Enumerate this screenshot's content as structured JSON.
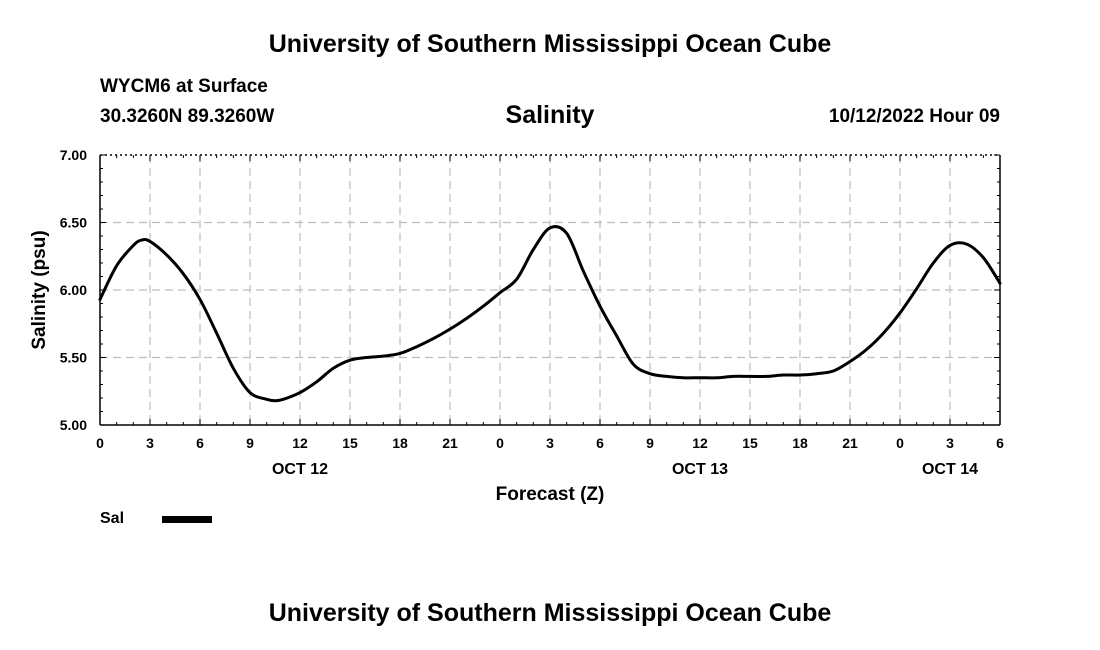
{
  "header": {
    "title": "University of Southern Mississippi Ocean Cube",
    "station": "WYCM6 at Surface",
    "coordinates": "30.3260N  89.3260W",
    "datetime": "10/12/2022 Hour 09"
  },
  "footer": {
    "title": "University of Southern Mississippi Ocean Cube"
  },
  "legend": {
    "label": "Sal",
    "color": "#000000"
  },
  "chart_data": {
    "type": "line",
    "title": "Salinity",
    "xlabel": "Forecast (Z)",
    "ylabel": "Salinity (psu)",
    "ylim": [
      5.0,
      7.0
    ],
    "xlim": [
      0,
      54
    ],
    "grid": true,
    "y_ticks": [
      "5.00",
      "5.50",
      "6.00",
      "6.50",
      "7.00"
    ],
    "x_ticks": [
      "0",
      "3",
      "6",
      "9",
      "12",
      "15",
      "18",
      "21",
      "0",
      "3",
      "6",
      "9",
      "12",
      "15",
      "18",
      "21",
      "0",
      "3",
      "6"
    ],
    "date_labels": [
      {
        "label": "OCT 12",
        "hour": 12
      },
      {
        "label": "OCT 13",
        "hour": 36
      },
      {
        "label": "OCT 14",
        "hour": 51
      }
    ],
    "series": [
      {
        "name": "Sal",
        "color": "#000000",
        "x": [
          0,
          1,
          2,
          2.5,
          3,
          4,
          5,
          6,
          7,
          8,
          9,
          10,
          10.5,
          11,
          12,
          13,
          14,
          15,
          16,
          17,
          18,
          19,
          20,
          21,
          22,
          23,
          24,
          25,
          26,
          27,
          28,
          29,
          30,
          31,
          32,
          33,
          34,
          35,
          36,
          37,
          38,
          39,
          40,
          41,
          42,
          43,
          44,
          45,
          46,
          47,
          48,
          49,
          50,
          51,
          52,
          53,
          54
        ],
        "values": [
          5.93,
          6.18,
          6.33,
          6.37,
          6.36,
          6.26,
          6.12,
          5.93,
          5.68,
          5.42,
          5.24,
          5.19,
          5.18,
          5.19,
          5.24,
          5.32,
          5.42,
          5.48,
          5.5,
          5.51,
          5.53,
          5.58,
          5.64,
          5.71,
          5.79,
          5.88,
          5.98,
          6.08,
          6.3,
          6.46,
          6.42,
          6.14,
          5.88,
          5.66,
          5.45,
          5.38,
          5.36,
          5.35,
          5.35,
          5.35,
          5.36,
          5.36,
          5.36,
          5.37,
          5.37,
          5.38,
          5.4,
          5.47,
          5.56,
          5.68,
          5.83,
          6.01,
          6.2,
          6.33,
          6.34,
          6.24,
          6.05
        ]
      }
    ]
  }
}
